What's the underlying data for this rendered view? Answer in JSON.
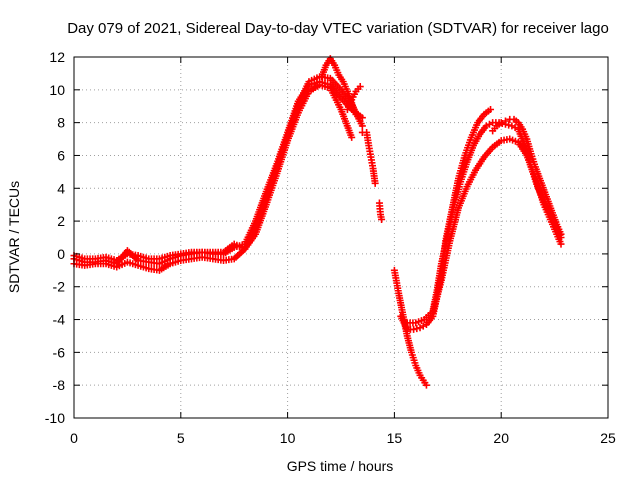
{
  "chart_data": {
    "type": "scatter",
    "title": "Day 079 of 2021, Sidereal Day-to-day VTEC variation (SDTVAR) for receiver lago",
    "xlabel": "GPS time / hours",
    "ylabel": "SDTVAR / TECUs",
    "xlim": [
      0,
      25
    ],
    "ylim": [
      -10,
      12
    ],
    "xticks": [
      0,
      5,
      10,
      15,
      20,
      25
    ],
    "yticks": [
      -10,
      -8,
      -6,
      -4,
      -2,
      0,
      2,
      4,
      6,
      8,
      10,
      12
    ],
    "grid": true,
    "marker": "+",
    "series": [
      {
        "name": "SDTVAR",
        "color": "#ff0000",
        "tracks": [
          {
            "x": [
              0.0,
              0.5,
              1.0,
              1.5,
              2.0,
              2.5,
              3.0,
              3.5,
              4.0,
              4.5,
              5.0,
              5.5,
              6.0,
              6.5,
              7.0,
              7.5,
              8.0,
              8.5,
              9.0,
              9.5,
              10.0,
              10.5,
              11.0,
              11.5,
              12.0,
              12.5,
              13.0,
              13.5
            ],
            "y": [
              -0.3,
              -0.5,
              -0.5,
              -0.4,
              -0.6,
              0.2,
              -0.4,
              -0.5,
              -0.6,
              -0.3,
              -0.1,
              0.0,
              0.1,
              0.0,
              0.0,
              0.4,
              0.6,
              2.0,
              3.8,
              5.5,
              7.4,
              9.3,
              10.3,
              10.5,
              10.3,
              9.5,
              8.8,
              8.3
            ]
          },
          {
            "x": [
              0.0,
              0.5,
              1.0,
              1.5,
              2.0,
              2.5,
              3.0,
              3.5,
              4.0,
              4.5,
              5.0,
              5.5,
              6.0,
              6.5,
              7.0,
              7.5,
              8.0,
              8.5,
              9.0,
              9.5,
              10.0,
              10.5,
              11.0,
              11.5,
              12.0,
              12.5,
              13.0
            ],
            "y": [
              -0.6,
              -0.7,
              -0.6,
              -0.6,
              -0.8,
              -0.5,
              -0.7,
              -0.9,
              -1.0,
              -0.6,
              -0.4,
              -0.3,
              -0.2,
              -0.3,
              -0.4,
              -0.3,
              0.3,
              1.2,
              3.0,
              4.9,
              6.9,
              8.6,
              9.9,
              10.3,
              10.1,
              8.8,
              7.1
            ]
          },
          {
            "x": [
              0.0,
              0.5,
              1.0,
              1.5,
              2.0,
              2.5,
              3.0,
              3.5,
              4.0,
              4.5,
              5.0,
              5.5,
              6.0,
              6.5,
              7.0,
              7.5,
              8.0,
              8.5,
              9.0,
              9.5,
              10.0,
              10.5,
              11.0,
              11.5,
              12.0,
              12.5,
              13.0,
              13.5
            ],
            "y": [
              -0.1,
              -0.3,
              -0.3,
              -0.2,
              -0.4,
              0.0,
              -0.1,
              -0.3,
              -0.3,
              -0.1,
              0.0,
              0.1,
              0.1,
              0.1,
              0.1,
              0.6,
              0.3,
              1.6,
              3.4,
              5.3,
              7.2,
              9.1,
              10.5,
              10.8,
              10.7,
              10.0,
              9.1,
              7.8
            ]
          },
          {
            "x": [
              11.6,
              11.8,
              12.0,
              12.2,
              12.4,
              12.6,
              12.8,
              13.0,
              13.2
            ],
            "y": [
              10.8,
              11.5,
              11.9,
              11.5,
              10.9,
              10.5,
              9.9,
              9.2,
              8.5
            ]
          },
          {
            "x": [
              12.8,
              13.0,
              13.2,
              13.4
            ],
            "y": [
              8.8,
              9.4,
              9.9,
              10.2
            ]
          },
          {
            "x": [
              13.5,
              13.7,
              13.8,
              13.9,
              14.0,
              14.1
            ],
            "y": [
              7.4,
              7.4,
              6.6,
              5.9,
              5.2,
              4.3
            ]
          },
          {
            "x": [
              14.3,
              14.35,
              14.4
            ],
            "y": [
              3.1,
              2.4,
              2.1
            ]
          },
          {
            "x": [
              15.0,
              15.2,
              15.4,
              15.6,
              15.8,
              16.0,
              16.2,
              16.5
            ],
            "y": [
              -1.0,
              -2.4,
              -3.7,
              -5.0,
              -6.0,
              -6.8,
              -7.4,
              -8.0
            ]
          },
          {
            "x": [
              15.3,
              15.6,
              15.9,
              16.2,
              16.5,
              16.8,
              17.0,
              17.2,
              17.4,
              17.7,
              18.0,
              18.3,
              18.6,
              18.9,
              19.2,
              19.5
            ],
            "y": [
              -3.8,
              -4.6,
              -4.6,
              -4.5,
              -4.3,
              -3.8,
              -2.6,
              -1.2,
              0.8,
              2.7,
              4.6,
              6.0,
              7.1,
              8.0,
              8.5,
              8.8
            ]
          },
          {
            "x": [
              15.6,
              16.0,
              16.4,
              16.8,
              17.0,
              17.2,
              17.5,
              17.8,
              18.1,
              18.4,
              18.7,
              19.0,
              19.3,
              19.6,
              19.9,
              20.2,
              20.5,
              20.8,
              21.1,
              21.4,
              21.7,
              22.0,
              22.3,
              22.6,
              22.8
            ],
            "y": [
              -4.2,
              -4.2,
              -4.0,
              -3.5,
              -2.2,
              -0.6,
              1.2,
              3.0,
              4.4,
              5.6,
              6.6,
              7.3,
              7.8,
              8.0,
              8.0,
              7.9,
              7.8,
              7.6,
              6.6,
              5.3,
              4.1,
              3.2,
              2.4,
              1.6,
              1.0
            ]
          },
          {
            "x": [
              16.8,
              17.2,
              17.6,
              18.0,
              18.4,
              18.8,
              19.2,
              19.6,
              20.0,
              20.4,
              20.8,
              21.2,
              21.6,
              22.0,
              22.4,
              22.8
            ],
            "y": [
              -3.6,
              -1.6,
              0.8,
              2.8,
              4.1,
              5.1,
              5.9,
              6.5,
              6.9,
              7.0,
              6.8,
              6.0,
              4.6,
              3.0,
              1.8,
              0.6
            ]
          },
          {
            "x": [
              19.6,
              19.8,
              20.0,
              20.2,
              20.4,
              20.6,
              20.8,
              21.0,
              21.2,
              21.4,
              21.6,
              21.8,
              22.0,
              22.2,
              22.4,
              22.6,
              22.8
            ],
            "y": [
              7.5,
              7.8,
              8.0,
              8.1,
              8.2,
              8.2,
              8.0,
              7.6,
              7.0,
              6.1,
              5.3,
              4.6,
              3.9,
              3.2,
              2.5,
              1.8,
              1.2
            ]
          }
        ]
      }
    ]
  }
}
